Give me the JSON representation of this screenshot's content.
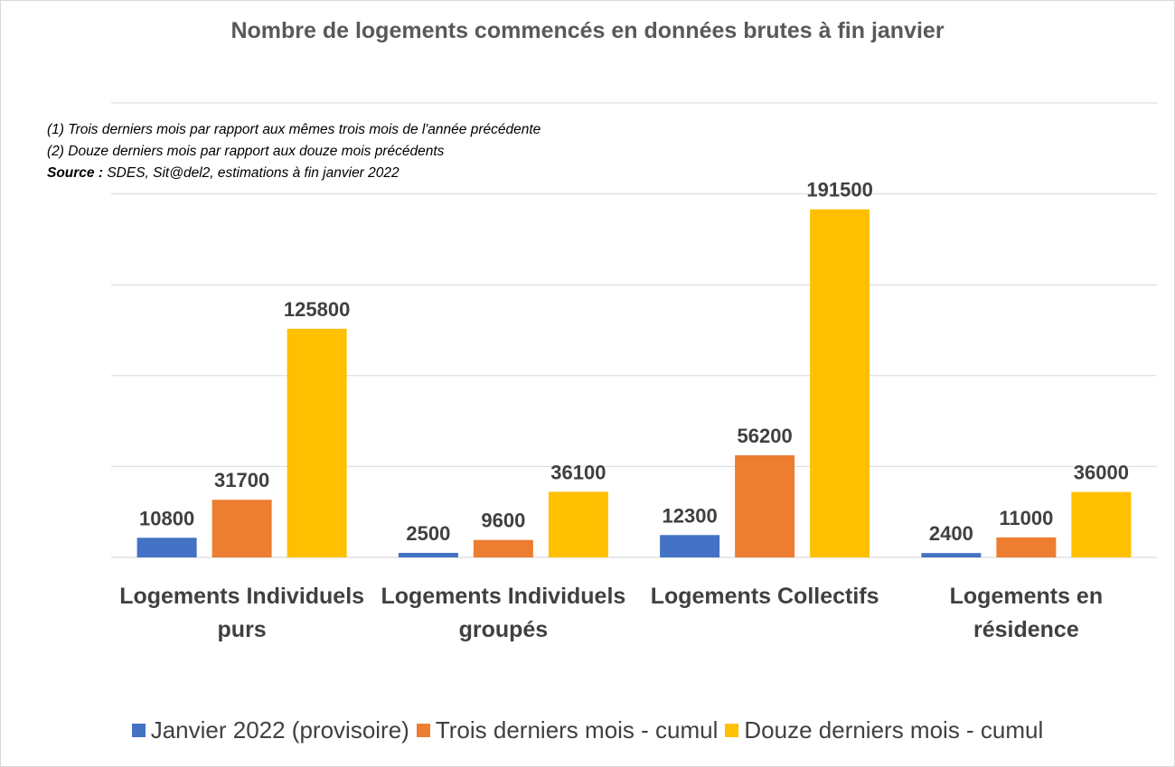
{
  "chart_data": {
    "type": "bar",
    "title": "Nombre de logements commencés en données brutes à fin janvier",
    "notes": [
      "(1) Trois derniers mois par rapport aux mêmes trois mois de l'année précédente",
      "(2) Douze derniers mois par rapport aux douze mois précédents"
    ],
    "source_label": "Source :",
    "source_text": " SDES, Sit@del2, estimations à fin janvier 2022",
    "categories": [
      "Logements Individuels purs",
      "Logements Individuels groupés",
      "Logements Collectifs",
      "Logements en résidence"
    ],
    "series": [
      {
        "name": "Janvier 2022 (provisoire)",
        "color": "#4472C4",
        "values": [
          10800,
          2500,
          12300,
          2400
        ]
      },
      {
        "name": "Trois derniers mois - cumul",
        "color": "#ED7D31",
        "values": [
          31700,
          9600,
          56200,
          11000
        ]
      },
      {
        "name": "Douze derniers mois - cumul",
        "color": "#FFC000",
        "values": [
          125800,
          36100,
          191500,
          36000
        ]
      }
    ],
    "ylim": [
      0,
      250000
    ],
    "grid_step": 50000,
    "grid": true,
    "y_tick_labels_shown": false,
    "data_labels": true,
    "legend_position": "bottom"
  }
}
